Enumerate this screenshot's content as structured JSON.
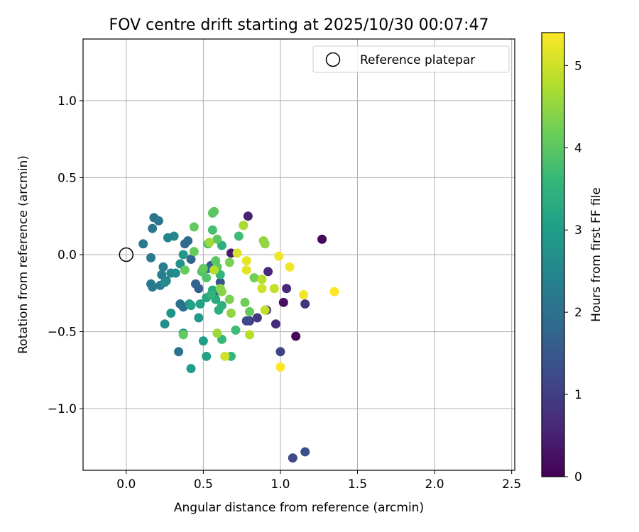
{
  "chart_data": {
    "type": "scatter",
    "title": "FOV centre drift starting at 2025/10/30 00:07:47",
    "xlabel": "Angular distance from reference (arcmin)",
    "ylabel": "Rotation from reference (arcmin)",
    "xlim": [
      -0.28,
      2.52
    ],
    "ylim": [
      -1.4,
      1.4
    ],
    "xticks": [
      0.0,
      0.5,
      1.0,
      1.5,
      2.0,
      2.5
    ],
    "xtick_labels": [
      "0.0",
      "0.5",
      "1.0",
      "1.5",
      "2.0",
      "2.5"
    ],
    "yticks": [
      -1.0,
      -0.5,
      0.0,
      0.5,
      1.0
    ],
    "ytick_labels": [
      "−1.0",
      "−0.5",
      "0.0",
      "0.5",
      "1.0"
    ],
    "grid": true,
    "legend": {
      "position": "top-right",
      "entries": [
        "Reference platepar"
      ]
    },
    "reference_point": {
      "x": 0.0,
      "y": 0.0
    },
    "colorbar": {
      "label": "Hours from first FF file",
      "range": [
        0,
        5.4
      ],
      "ticks": [
        0,
        1,
        2,
        3,
        4,
        5
      ],
      "tick_labels": [
        "0",
        "1",
        "2",
        "3",
        "4",
        "5"
      ],
      "colormap": "viridis",
      "colormap_stops": [
        "#440154",
        "#482878",
        "#3e4989",
        "#31688e",
        "#26828e",
        "#1f9e89",
        "#35b779",
        "#6ece58",
        "#b5de2b",
        "#fde725"
      ]
    },
    "points": [
      {
        "x": 1.1,
        "y": -0.53,
        "t": 0.05
      },
      {
        "x": 1.27,
        "y": 0.1,
        "t": 0.1
      },
      {
        "x": 1.02,
        "y": -0.31,
        "t": 0.2
      },
      {
        "x": 0.68,
        "y": 0.01,
        "t": 0.4
      },
      {
        "x": 0.79,
        "y": 0.25,
        "t": 0.5
      },
      {
        "x": 1.04,
        "y": -0.22,
        "t": 0.6
      },
      {
        "x": 0.92,
        "y": -0.11,
        "t": 0.6
      },
      {
        "x": 0.97,
        "y": -0.45,
        "t": 0.7
      },
      {
        "x": 0.91,
        "y": -0.36,
        "t": 0.8
      },
      {
        "x": 1.16,
        "y": -0.32,
        "t": 0.8
      },
      {
        "x": 0.85,
        "y": -0.41,
        "t": 0.9
      },
      {
        "x": 0.8,
        "y": -0.43,
        "t": 1.0
      },
      {
        "x": 1.0,
        "y": -0.63,
        "t": 1.1
      },
      {
        "x": 0.78,
        "y": -0.43,
        "t": 1.2
      },
      {
        "x": 1.16,
        "y": -1.28,
        "t": 1.3
      },
      {
        "x": 1.08,
        "y": -1.32,
        "t": 1.2
      },
      {
        "x": 0.61,
        "y": -0.18,
        "t": 1.4
      },
      {
        "x": 0.55,
        "y": -0.07,
        "t": 1.5
      },
      {
        "x": 0.58,
        "y": -0.24,
        "t": 1.6
      },
      {
        "x": 0.47,
        "y": -0.22,
        "t": 1.6
      },
      {
        "x": 0.45,
        "y": -0.19,
        "t": 1.7
      },
      {
        "x": 0.53,
        "y": -0.09,
        "t": 1.8
      },
      {
        "x": 0.42,
        "y": -0.03,
        "t": 1.8
      },
      {
        "x": 0.38,
        "y": 0.07,
        "t": 1.9
      },
      {
        "x": 0.4,
        "y": 0.09,
        "t": 1.9
      },
      {
        "x": 0.37,
        "y": -0.34,
        "t": 1.9
      },
      {
        "x": 0.35,
        "y": -0.32,
        "t": 2.0
      },
      {
        "x": 0.34,
        "y": -0.63,
        "t": 2.0
      },
      {
        "x": 0.18,
        "y": 0.24,
        "t": 2.1
      },
      {
        "x": 0.21,
        "y": 0.22,
        "t": 2.1
      },
      {
        "x": 0.17,
        "y": 0.17,
        "t": 2.1
      },
      {
        "x": 0.11,
        "y": 0.07,
        "t": 2.2
      },
      {
        "x": 0.16,
        "y": -0.02,
        "t": 2.2
      },
      {
        "x": 0.16,
        "y": -0.19,
        "t": 2.2
      },
      {
        "x": 0.17,
        "y": -0.21,
        "t": 2.2
      },
      {
        "x": 0.22,
        "y": -0.2,
        "t": 2.3
      },
      {
        "x": 0.24,
        "y": -0.08,
        "t": 2.3
      },
      {
        "x": 0.23,
        "y": -0.13,
        "t": 2.3
      },
      {
        "x": 0.26,
        "y": -0.17,
        "t": 2.4
      },
      {
        "x": 0.27,
        "y": 0.11,
        "t": 2.4
      },
      {
        "x": 0.29,
        "y": -0.12,
        "t": 2.5
      },
      {
        "x": 0.31,
        "y": 0.12,
        "t": 2.5
      },
      {
        "x": 0.32,
        "y": -0.12,
        "t": 2.6
      },
      {
        "x": 0.25,
        "y": -0.18,
        "t": 2.6
      },
      {
        "x": 0.35,
        "y": -0.06,
        "t": 2.7
      },
      {
        "x": 0.25,
        "y": -0.45,
        "t": 2.7
      },
      {
        "x": 0.37,
        "y": -0.51,
        "t": 2.8
      },
      {
        "x": 0.29,
        "y": -0.38,
        "t": 2.8
      },
      {
        "x": 0.37,
        "y": 0.0,
        "t": 2.9
      },
      {
        "x": 0.41,
        "y": -0.32,
        "t": 2.9
      },
      {
        "x": 0.47,
        "y": -0.41,
        "t": 2.9
      },
      {
        "x": 0.42,
        "y": -0.74,
        "t": 3.0
      },
      {
        "x": 0.5,
        "y": -0.56,
        "t": 3.0
      },
      {
        "x": 0.52,
        "y": -0.66,
        "t": 3.1
      },
      {
        "x": 0.48,
        "y": -0.32,
        "t": 3.1
      },
      {
        "x": 0.42,
        "y": -0.33,
        "t": 3.1
      },
      {
        "x": 0.52,
        "y": -0.28,
        "t": 3.2
      },
      {
        "x": 0.56,
        "y": -0.23,
        "t": 3.3
      },
      {
        "x": 0.58,
        "y": -0.29,
        "t": 3.3
      },
      {
        "x": 0.6,
        "y": -0.36,
        "t": 3.4
      },
      {
        "x": 0.62,
        "y": -0.33,
        "t": 3.4
      },
      {
        "x": 0.62,
        "y": 0.06,
        "t": 3.4
      },
      {
        "x": 0.55,
        "y": -0.26,
        "t": 3.5
      },
      {
        "x": 0.61,
        "y": -0.13,
        "t": 3.5
      },
      {
        "x": 0.62,
        "y": -0.55,
        "t": 3.6
      },
      {
        "x": 0.68,
        "y": -0.66,
        "t": 3.6
      },
      {
        "x": 0.71,
        "y": -0.49,
        "t": 3.7
      },
      {
        "x": 0.73,
        "y": 0.12,
        "t": 3.7
      },
      {
        "x": 0.56,
        "y": 0.16,
        "t": 3.8
      },
      {
        "x": 0.53,
        "y": 0.07,
        "t": 3.8
      },
      {
        "x": 0.49,
        "y": -0.11,
        "t": 3.9
      },
      {
        "x": 0.52,
        "y": -0.15,
        "t": 3.9
      },
      {
        "x": 0.58,
        "y": -0.04,
        "t": 4.0
      },
      {
        "x": 0.59,
        "y": -0.08,
        "t": 4.0
      },
      {
        "x": 0.56,
        "y": 0.27,
        "t": 4.0
      },
      {
        "x": 0.57,
        "y": 0.28,
        "t": 4.0
      },
      {
        "x": 0.59,
        "y": 0.1,
        "t": 4.0
      },
      {
        "x": 0.44,
        "y": 0.18,
        "t": 4.1
      },
      {
        "x": 0.44,
        "y": 0.02,
        "t": 4.1
      },
      {
        "x": 0.38,
        "y": -0.1,
        "t": 4.1
      },
      {
        "x": 0.5,
        "y": -0.09,
        "t": 4.1
      },
      {
        "x": 0.37,
        "y": -0.52,
        "t": 4.1
      },
      {
        "x": 0.8,
        "y": -0.37,
        "t": 4.1
      },
      {
        "x": 0.77,
        "y": -0.31,
        "t": 4.2
      },
      {
        "x": 0.83,
        "y": -0.15,
        "t": 4.2
      },
      {
        "x": 0.67,
        "y": -0.29,
        "t": 4.3
      },
      {
        "x": 0.67,
        "y": -0.05,
        "t": 4.3
      },
      {
        "x": 0.62,
        "y": -0.24,
        "t": 4.4
      },
      {
        "x": 0.61,
        "y": -0.22,
        "t": 4.4
      },
      {
        "x": 0.68,
        "y": -0.38,
        "t": 4.5
      },
      {
        "x": 0.89,
        "y": 0.09,
        "t": 4.5
      },
      {
        "x": 0.9,
        "y": 0.07,
        "t": 4.5
      },
      {
        "x": 0.59,
        "y": -0.51,
        "t": 4.6
      },
      {
        "x": 0.54,
        "y": 0.08,
        "t": 4.6
      },
      {
        "x": 0.76,
        "y": 0.19,
        "t": 4.7
      },
      {
        "x": 0.57,
        "y": -0.1,
        "t": 4.8
      },
      {
        "x": 0.8,
        "y": -0.52,
        "t": 4.8
      },
      {
        "x": 0.88,
        "y": -0.16,
        "t": 4.8
      },
      {
        "x": 0.9,
        "y": -0.36,
        "t": 4.9
      },
      {
        "x": 0.96,
        "y": -0.22,
        "t": 4.9
      },
      {
        "x": 0.88,
        "y": -0.22,
        "t": 5.0
      },
      {
        "x": 0.64,
        "y": -0.66,
        "t": 5.0
      },
      {
        "x": 0.72,
        "y": 0.01,
        "t": 5.1
      },
      {
        "x": 0.78,
        "y": -0.04,
        "t": 5.2
      },
      {
        "x": 0.78,
        "y": -0.1,
        "t": 5.2
      },
      {
        "x": 0.99,
        "y": -0.01,
        "t": 5.3
      },
      {
        "x": 1.06,
        "y": -0.08,
        "t": 5.3
      },
      {
        "x": 1.15,
        "y": -0.26,
        "t": 5.3
      },
      {
        "x": 1.35,
        "y": -0.24,
        "t": 5.4
      },
      {
        "x": 1.0,
        "y": -0.73,
        "t": 5.4
      }
    ]
  }
}
